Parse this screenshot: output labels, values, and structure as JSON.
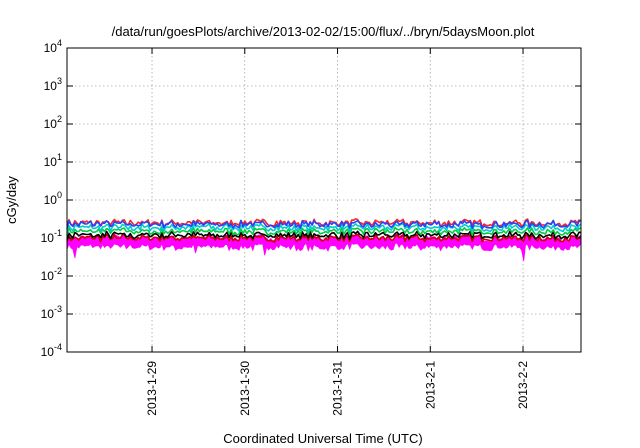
{
  "chart_data": {
    "type": "line",
    "title": "/data/run/goesPlots/archive/2013-02-02/15:00/flux/../bryn/5daysMoon.plot",
    "xlabel": "Coordinated Universal Time (UTC)",
    "ylabel": "cGy/day",
    "yscale": "log",
    "ylim": [
      0.0001,
      10000
    ],
    "y_ticks": [
      {
        "value": 0.0001,
        "base": "10",
        "exp": "-4"
      },
      {
        "value": 0.001,
        "base": "10",
        "exp": "-3"
      },
      {
        "value": 0.01,
        "base": "10",
        "exp": "-2"
      },
      {
        "value": 0.1,
        "base": "10",
        "exp": "-1"
      },
      {
        "value": 1,
        "base": "10",
        "exp": "0"
      },
      {
        "value": 10,
        "base": "10",
        "exp": "1"
      },
      {
        "value": 100,
        "base": "10",
        "exp": "2"
      },
      {
        "value": 1000,
        "base": "10",
        "exp": "3"
      },
      {
        "value": 10000,
        "base": "10",
        "exp": "4"
      }
    ],
    "xlim": [
      "2013-01-28 02:00",
      "2013-02-02 15:00"
    ],
    "x_ticks": [
      {
        "label": "2013-1-29",
        "date": "2013-01-29 00:00"
      },
      {
        "label": "2013-1-30",
        "date": "2013-01-30 00:00"
      },
      {
        "label": "2013-1-31",
        "date": "2013-01-31 00:00"
      },
      {
        "label": "2013-2-1",
        "date": "2013-02-01 00:00"
      },
      {
        "label": "2013-2-2",
        "date": "2013-02-02 00:00"
      }
    ],
    "grid": true,
    "series": [
      {
        "color": "#ff00ff",
        "base": 0.075,
        "band": "fill"
      },
      {
        "color": "#cc0000",
        "base": 0.1
      },
      {
        "color": "#000000",
        "base": 0.12
      },
      {
        "color": "#00cc44",
        "base": 0.15
      },
      {
        "color": "#00cccc",
        "base": 0.19
      },
      {
        "color": "#ff2222",
        "base": 0.25
      },
      {
        "color": "#2244ff",
        "base": 0.23
      }
    ],
    "dips": [
      {
        "date": "2013-01-28 04:00",
        "value": 0.03
      },
      {
        "date": "2013-01-29 11:00",
        "value": 0.04
      },
      {
        "date": "2013-01-30 05:00",
        "value": 0.035
      },
      {
        "date": "2013-01-30 15:00",
        "value": 0.05
      },
      {
        "date": "2013-01-30 22:00",
        "value": 0.06
      },
      {
        "date": "2013-01-31 01:00",
        "value": 0.055
      },
      {
        "date": "2013-02-02 00:00",
        "value": 0.025
      }
    ]
  }
}
